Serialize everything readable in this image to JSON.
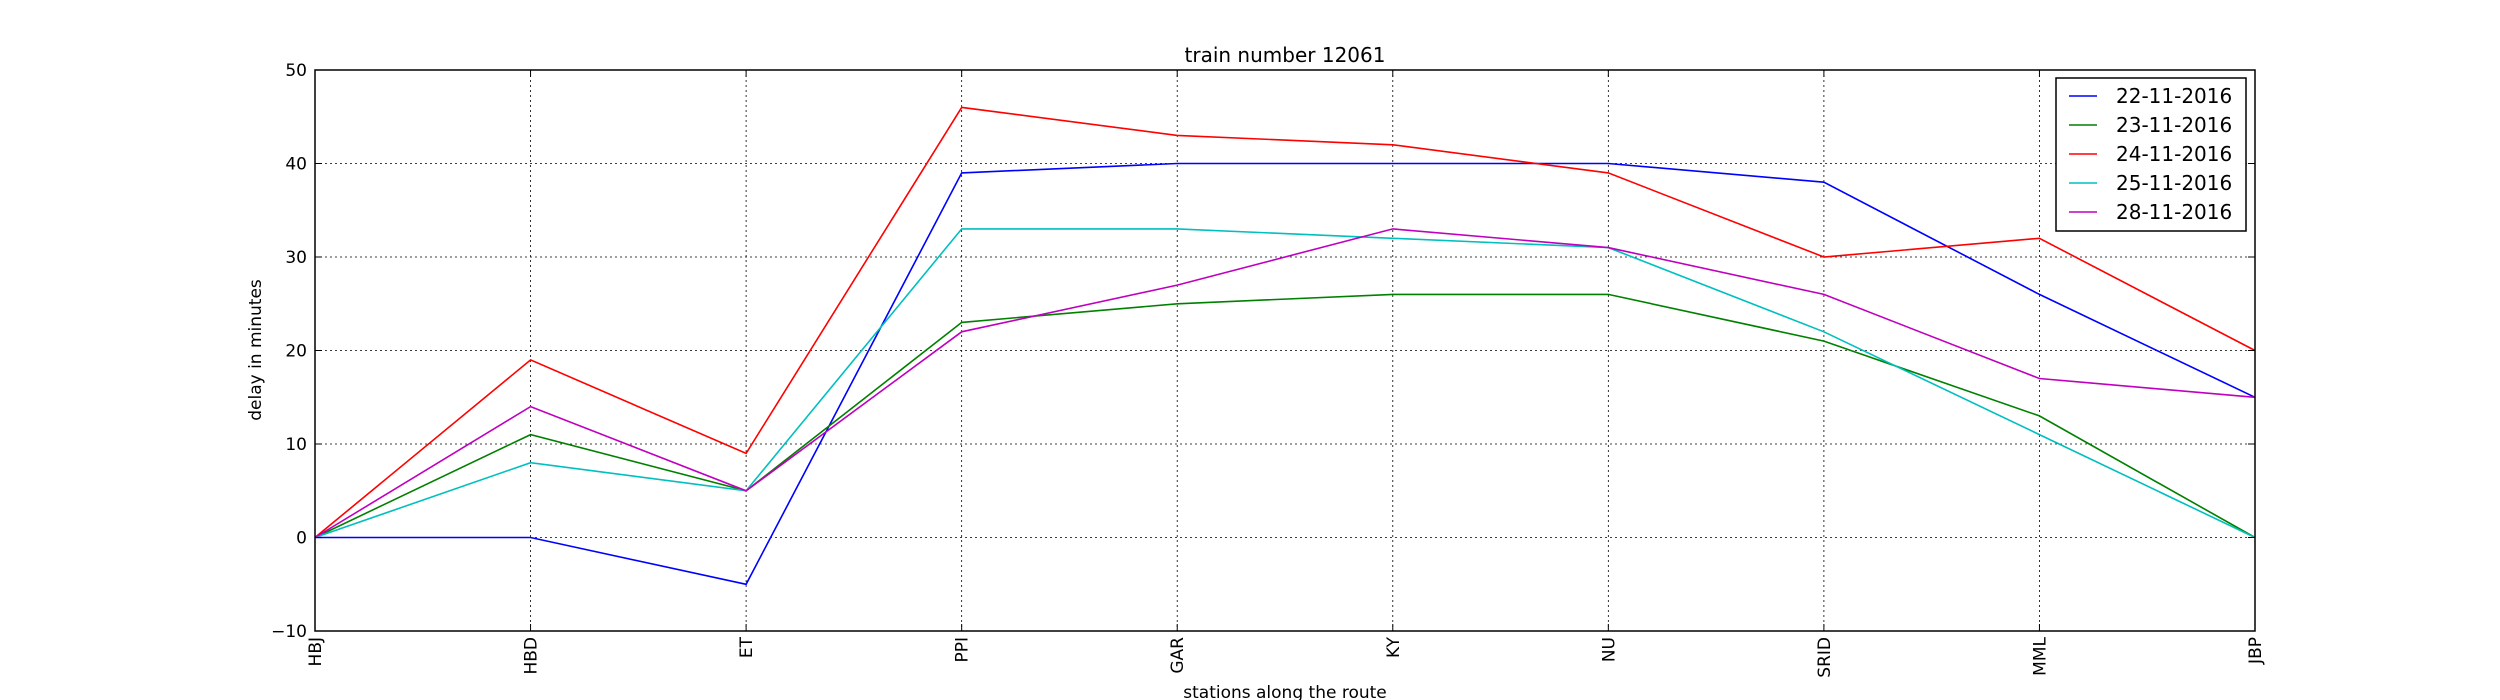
{
  "chart_data": {
    "type": "line",
    "title": "train number 12061",
    "xlabel": "stations along the route",
    "ylabel": "delay in minutes",
    "categories": [
      "HBJ",
      "HBD",
      "ET",
      "PPI",
      "GAR",
      "KY",
      "NU",
      "SRID",
      "MML",
      "JBP"
    ],
    "ylim": [
      -10,
      50
    ],
    "yticks": [
      -10,
      0,
      10,
      20,
      30,
      40,
      50
    ],
    "grid": true,
    "legend_position": "top-right",
    "series": [
      {
        "name": "22-11-2016",
        "color": "#0000ff",
        "values": [
          0,
          0,
          -5,
          39,
          40,
          40,
          40,
          38,
          26,
          15
        ]
      },
      {
        "name": "23-11-2016",
        "color": "#008000",
        "values": [
          0,
          11,
          5,
          23,
          25,
          26,
          26,
          21,
          13,
          0
        ]
      },
      {
        "name": "24-11-2016",
        "color": "#ff0000",
        "values": [
          0,
          19,
          9,
          46,
          43,
          42,
          39,
          30,
          32,
          20
        ]
      },
      {
        "name": "25-11-2016",
        "color": "#00bfbf",
        "values": [
          0,
          8,
          5,
          33,
          33,
          32,
          31,
          22,
          11,
          0
        ]
      },
      {
        "name": "28-11-2016",
        "color": "#bf00bf",
        "values": [
          0,
          14,
          5,
          22,
          27,
          33,
          31,
          26,
          17,
          15
        ]
      }
    ]
  }
}
